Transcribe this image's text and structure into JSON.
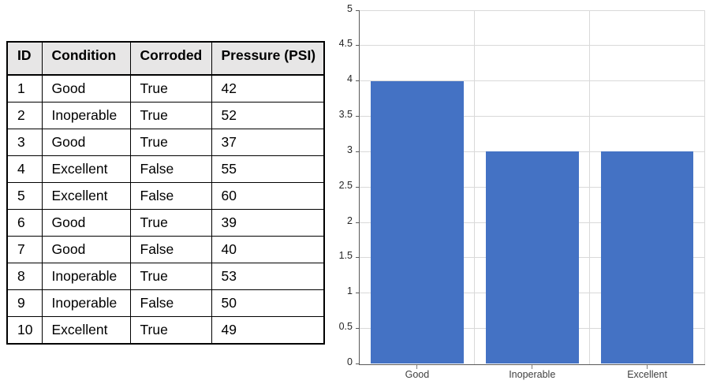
{
  "table": {
    "columns": [
      "ID",
      "Condition",
      "Corroded",
      "Pressure (PSI)"
    ],
    "rows": [
      [
        "1",
        "Good",
        "True",
        "42"
      ],
      [
        "2",
        "Inoperable",
        "True",
        "52"
      ],
      [
        "3",
        "Good",
        "True",
        "37"
      ],
      [
        "4",
        "Excellent",
        "False",
        "55"
      ],
      [
        "5",
        "Excellent",
        "False",
        "60"
      ],
      [
        "6",
        "Good",
        "True",
        "39"
      ],
      [
        "7",
        "Good",
        "False",
        "40"
      ],
      [
        "8",
        "Inoperable",
        "True",
        "53"
      ],
      [
        "9",
        "Inoperable",
        "False",
        "50"
      ],
      [
        "10",
        "Excellent",
        "True",
        "49"
      ]
    ],
    "header_bg": "#e7e6e6",
    "border_color": "#000000"
  },
  "chart_data": {
    "type": "bar",
    "categories": [
      "Good",
      "Inoperable",
      "Excellent"
    ],
    "values": [
      4,
      3,
      3
    ],
    "title": "",
    "xlabel": "",
    "ylabel": "",
    "ylim": [
      0,
      5
    ],
    "y_tick_step": 0.5,
    "y_tick_labels": [
      "0",
      "0.5",
      "1",
      "1.5",
      "2",
      "2.5",
      "3",
      "3.5",
      "4",
      "4.5",
      "5"
    ],
    "grid": "both",
    "legend": "none",
    "bar_color": "#4472c4",
    "gridline_color": "#d9d9d9",
    "axis_color": "#595959"
  }
}
